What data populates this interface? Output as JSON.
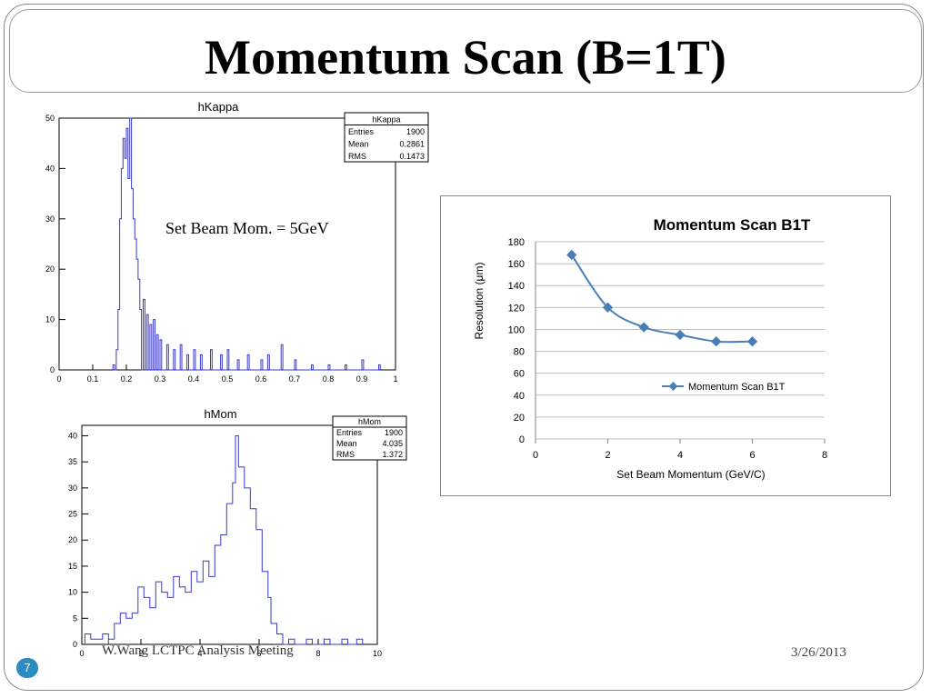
{
  "slide": {
    "title": "Momentum Scan (B=1T)",
    "annotation": "Set Beam Mom. = 5GeV",
    "footer_author": "W.Wang  LCTPC Analysis Meeting",
    "footer_date": "3/26/2013",
    "page_number": "7"
  },
  "chart_data": [
    {
      "type": "bar",
      "title": "hKappa",
      "xlabel": "",
      "ylabel": "",
      "xlim": [
        0,
        1
      ],
      "ylim": [
        0,
        50
      ],
      "x_ticks": [
        "0",
        "0.1",
        "0.2",
        "0.3",
        "0.4",
        "0.5",
        "0.6",
        "0.7",
        "0.8",
        "0.9",
        "1"
      ],
      "y_ticks": [
        "0",
        "10",
        "20",
        "30",
        "40",
        "50"
      ],
      "color": "#3a3acc",
      "stats": {
        "name": "hKappa",
        "rows": [
          [
            "Entries",
            "1900"
          ],
          [
            "Mean",
            "0.2861"
          ],
          [
            "RMS",
            "0.1473"
          ]
        ]
      },
      "bins": [
        [
          0.16,
          1
        ],
        [
          0.17,
          4
        ],
        [
          0.175,
          12
        ],
        [
          0.18,
          30
        ],
        [
          0.185,
          40
        ],
        [
          0.19,
          46
        ],
        [
          0.195,
          42
        ],
        [
          0.2,
          48
        ],
        [
          0.205,
          38
        ],
        [
          0.21,
          50
        ],
        [
          0.215,
          36
        ],
        [
          0.22,
          30
        ],
        [
          0.225,
          26
        ],
        [
          0.23,
          22
        ],
        [
          0.235,
          18
        ],
        [
          0.24,
          12
        ],
        [
          0.25,
          14
        ],
        [
          0.26,
          11
        ],
        [
          0.27,
          9
        ],
        [
          0.28,
          10
        ],
        [
          0.29,
          7
        ],
        [
          0.3,
          6
        ],
        [
          0.32,
          5
        ],
        [
          0.34,
          4
        ],
        [
          0.36,
          5
        ],
        [
          0.38,
          3
        ],
        [
          0.4,
          4
        ],
        [
          0.42,
          3
        ],
        [
          0.45,
          4
        ],
        [
          0.48,
          3
        ],
        [
          0.5,
          4
        ],
        [
          0.53,
          2
        ],
        [
          0.56,
          3
        ],
        [
          0.6,
          2
        ],
        [
          0.62,
          3
        ],
        [
          0.66,
          5
        ],
        [
          0.7,
          2
        ],
        [
          0.75,
          1
        ],
        [
          0.8,
          1
        ],
        [
          0.85,
          1
        ],
        [
          0.9,
          2
        ],
        [
          0.95,
          1
        ]
      ]
    },
    {
      "type": "bar",
      "title": "hMom",
      "xlabel": "",
      "ylabel": "",
      "xlim": [
        0,
        10
      ],
      "ylim": [
        0,
        42
      ],
      "x_ticks": [
        "0",
        "2",
        "4",
        "6",
        "8",
        "10"
      ],
      "y_ticks": [
        "0",
        "5",
        "10",
        "15",
        "20",
        "25",
        "30",
        "35",
        "40"
      ],
      "color": "#3a3acc",
      "stats": {
        "name": "hMom",
        "rows": [
          [
            "Entries",
            "1900"
          ],
          [
            "Mean",
            "4.035"
          ],
          [
            "RMS",
            "1.372"
          ]
        ]
      },
      "bins": [
        [
          0.1,
          2
        ],
        [
          0.3,
          1
        ],
        [
          0.5,
          1
        ],
        [
          0.7,
          2
        ],
        [
          0.9,
          1
        ],
        [
          1.1,
          4
        ],
        [
          1.3,
          6
        ],
        [
          1.5,
          5
        ],
        [
          1.7,
          6
        ],
        [
          1.9,
          11
        ],
        [
          2.1,
          9
        ],
        [
          2.3,
          7
        ],
        [
          2.5,
          12
        ],
        [
          2.7,
          10
        ],
        [
          2.9,
          9
        ],
        [
          3.1,
          13
        ],
        [
          3.3,
          11
        ],
        [
          3.5,
          10
        ],
        [
          3.7,
          14
        ],
        [
          3.9,
          12
        ],
        [
          4.1,
          16
        ],
        [
          4.3,
          13
        ],
        [
          4.5,
          19
        ],
        [
          4.7,
          21
        ],
        [
          4.9,
          27
        ],
        [
          5.1,
          31
        ],
        [
          5.2,
          40
        ],
        [
          5.3,
          34
        ],
        [
          5.5,
          30
        ],
        [
          5.7,
          26
        ],
        [
          5.9,
          22
        ],
        [
          6.1,
          14
        ],
        [
          6.3,
          9
        ],
        [
          6.4,
          4
        ],
        [
          6.6,
          2
        ],
        [
          7,
          1
        ],
        [
          7.6,
          1
        ],
        [
          8.2,
          1
        ],
        [
          8.8,
          1
        ],
        [
          9.3,
          1
        ]
      ]
    },
    {
      "type": "line",
      "title": "Momentum Scan B1T",
      "xlabel": "Set Beam Momentum (GeV/C)",
      "ylabel": "Resolution (μm)",
      "xlim": [
        0,
        8
      ],
      "ylim": [
        0,
        180
      ],
      "x_ticks": [
        "0",
        "2",
        "4",
        "6",
        "8"
      ],
      "y_ticks": [
        "0",
        "20",
        "40",
        "60",
        "80",
        "100",
        "120",
        "140",
        "160",
        "180"
      ],
      "grid": true,
      "legend": "center-right",
      "color": "#4a7ebb",
      "series": [
        {
          "name": "Momentum Scan B1T",
          "x": [
            1,
            2,
            3,
            4,
            5,
            6
          ],
          "y": [
            168,
            120,
            102,
            95,
            89,
            89
          ]
        }
      ]
    }
  ]
}
